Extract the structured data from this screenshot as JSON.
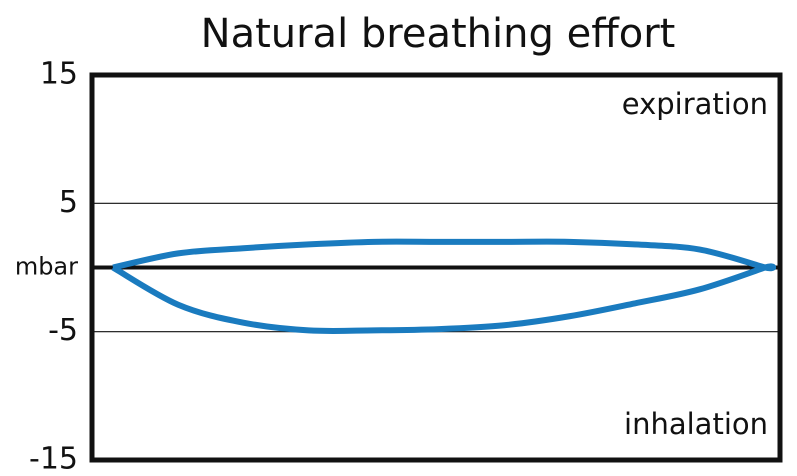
{
  "chart_data": {
    "type": "line",
    "title": "Natural breathing effort",
    "annotations": [
      "expiration",
      "inhalation"
    ],
    "x": [
      0,
      10,
      20,
      30,
      40,
      50,
      60,
      70,
      80,
      90,
      100,
      100,
      90,
      80,
      70,
      60,
      50,
      40,
      30,
      20,
      10,
      0
    ],
    "series": [
      {
        "color": "#1a7bbf",
        "values": [
          0,
          1.1,
          1.5,
          1.8,
          2.0,
          2.0,
          2.0,
          2.0,
          1.8,
          1.4,
          0,
          0,
          -1.7,
          -2.8,
          -3.8,
          -4.5,
          -4.8,
          -4.9,
          -4.9,
          -4.3,
          -2.9,
          0
        ]
      }
    ],
    "xlim": [
      0,
      100
    ],
    "ylim": [
      -15,
      15
    ],
    "yticks": [
      15,
      5,
      {
        "value": 0,
        "label": "mbar"
      },
      -5,
      -15
    ],
    "grid": true
  }
}
